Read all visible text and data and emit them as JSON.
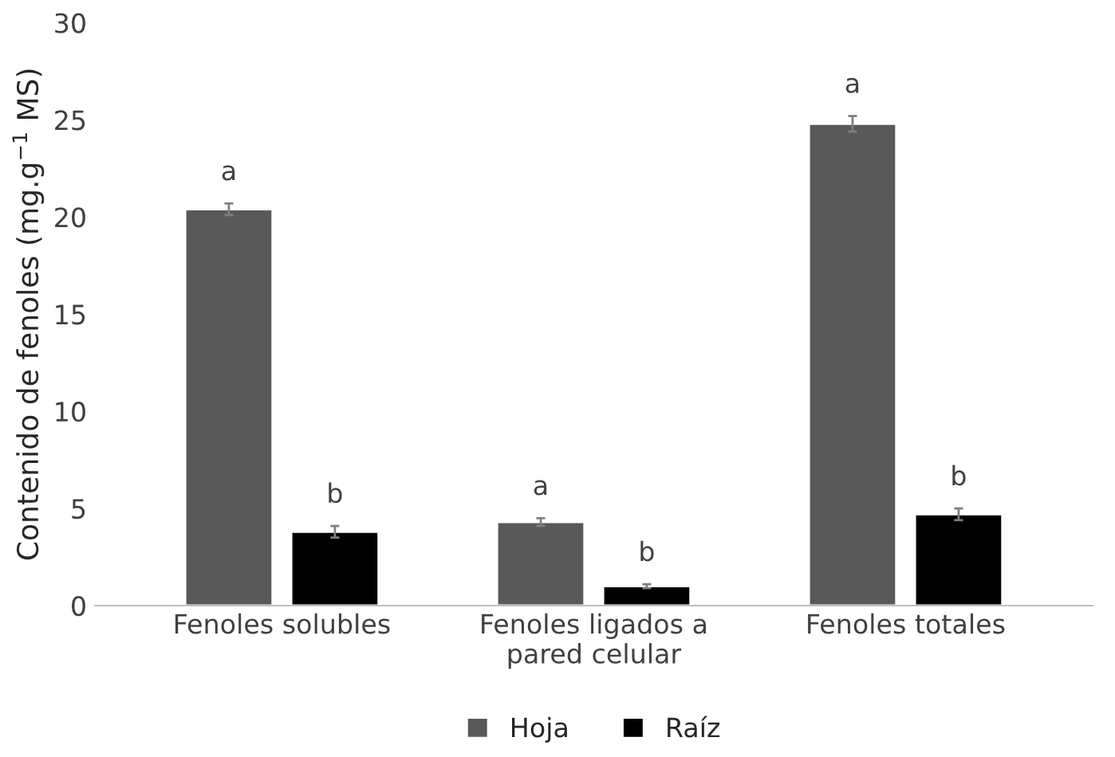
{
  "chart_data": {
    "type": "bar",
    "ylabel": "Contenido de fenoles (mg.g$^{−1}$ MS)",
    "categories": [
      "Fenoles solubles",
      "Fenoles ligados a\npared celular",
      "Fenoles totales"
    ],
    "series": [
      {
        "name": "Hoja",
        "color": "#595959",
        "values": [
          20.4,
          4.3,
          24.8
        ],
        "errors": [
          0.3,
          0.2,
          0.4
        ],
        "value_labels": [
          "a",
          "a",
          "a"
        ]
      },
      {
        "name": "Raíz",
        "color": "#000000",
        "values": [
          3.8,
          1.0,
          4.7
        ],
        "errors": [
          0.3,
          0.1,
          0.3
        ],
        "value_labels": [
          "b",
          "b",
          "b"
        ]
      }
    ],
    "ylim": [
      0,
      30
    ],
    "yticks": [
      0,
      5,
      10,
      15,
      20,
      25,
      30
    ],
    "grid": false,
    "legend": "bottom"
  }
}
